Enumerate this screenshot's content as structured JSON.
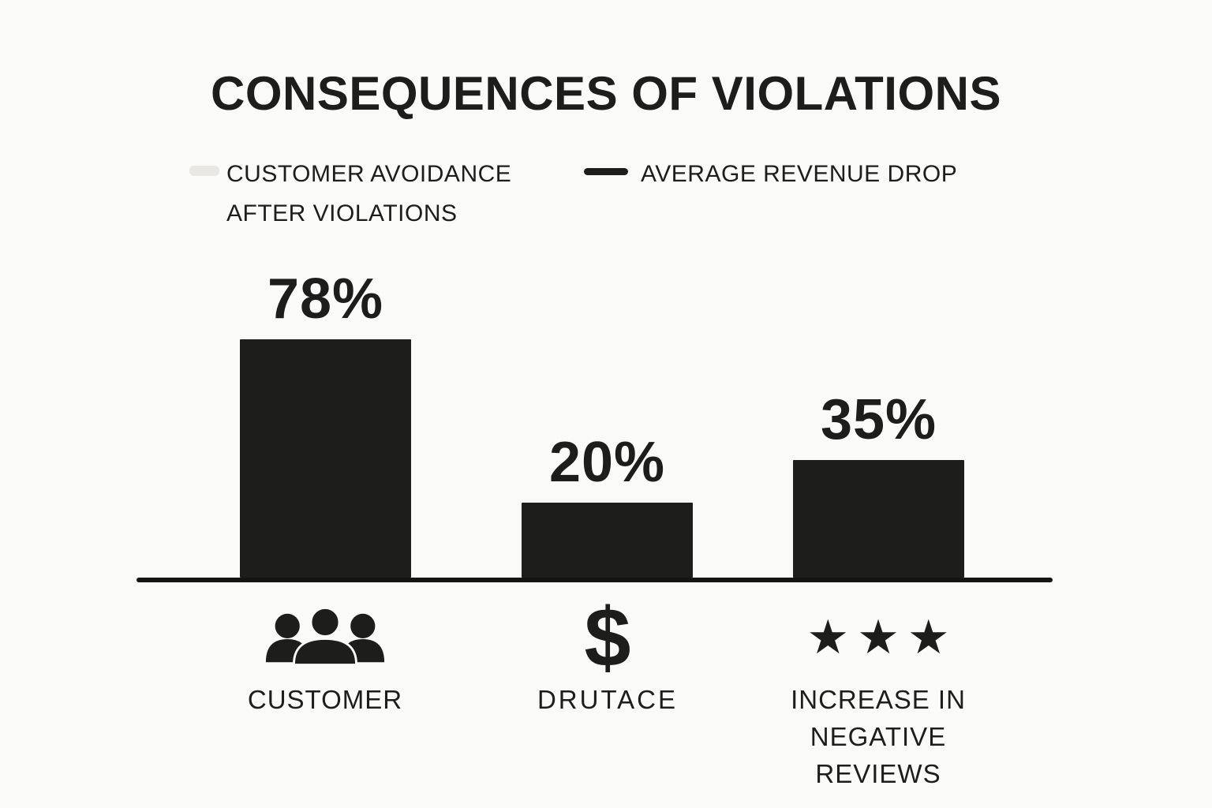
{
  "page": {
    "background_color": "#fafaf8",
    "ink_color": "#1d1d1b"
  },
  "chart_data": {
    "type": "bar",
    "title": "CONSEQUENCES OF VIOLATIONS",
    "categories": [
      "CUSTOMER",
      "DRUTACE",
      "INCREASE IN NEGATIVE REVIEWS"
    ],
    "values": [
      78,
      20,
      35
    ],
    "value_labels": [
      "78%",
      "20%",
      "35%"
    ],
    "series": [
      {
        "name": "CUSTOMER AVOIDANCE AFTER VIOLATIONS",
        "swatch_color": "#e8e7e4"
      },
      {
        "name": "AVERAGE REVENUE DROP",
        "swatch_color": "#1d1d1b"
      }
    ],
    "bar_color": "#1d1d1b",
    "xlabel": "",
    "ylabel": "",
    "ylim": [
      0,
      100
    ],
    "grid": false,
    "legend_position": "top",
    "baseline_axis": true
  },
  "icons": [
    {
      "name": "people-icon",
      "meaning": "customers"
    },
    {
      "name": "dollar-icon",
      "meaning": "revenue",
      "glyph": "$"
    },
    {
      "name": "stars-icon",
      "meaning": "reviews",
      "glyph": "★★★"
    }
  ]
}
